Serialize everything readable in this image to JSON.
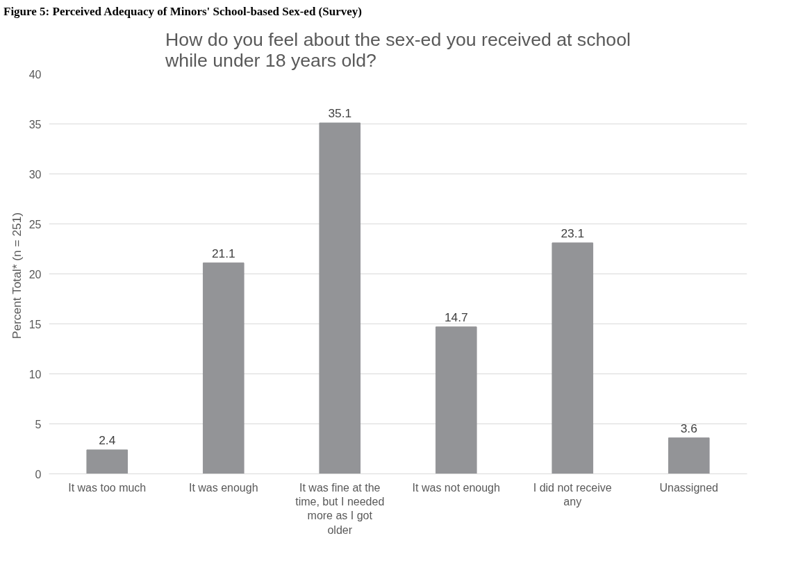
{
  "chart_data": {
    "type": "bar",
    "title": "How do you feel about the sex-ed you received at school while under 18 years old?",
    "ylabel": "Percent Total*  (n = 251)",
    "annotations": [
      "Figure 5: Perceived Adequacy of Minors' School-based Sex-ed (Survey)"
    ],
    "categories": [
      "It was too much",
      "It was enough",
      "It was fine at the time, but I needed more as I got older",
      "It was not enough",
      "I did not receive any",
      "Unassigned"
    ],
    "values": [
      2.4,
      21.1,
      35.1,
      14.7,
      23.1,
      3.6
    ],
    "color": "#939497",
    "data_labels": true,
    "ylim": [
      0,
      40
    ],
    "yticks": [
      0,
      5,
      10,
      15,
      20,
      25,
      30,
      35,
      40
    ],
    "grid": "y"
  }
}
